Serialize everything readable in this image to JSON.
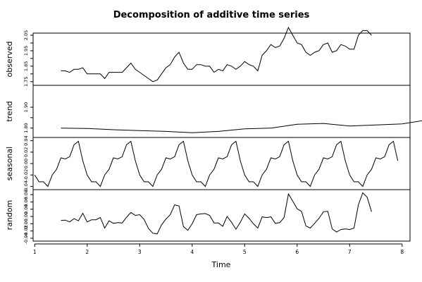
{
  "chart_data": {
    "type": "line",
    "title": "Decomposition of additive time series",
    "xlabel": "Time",
    "x_ticks": [
      1,
      2,
      3,
      4,
      5,
      6,
      7,
      8
    ],
    "xlim": [
      0.97,
      8.15
    ],
    "grid": false,
    "legend": "none",
    "panels": [
      {
        "name": "observed",
        "ylabel": "observed",
        "ylim": [
          1.74,
          2.05
        ],
        "y_ticks": [
          1.75,
          1.8,
          1.85,
          1.9,
          1.95,
          2.0,
          2.05
        ],
        "y_tick_labels": [
          "1.75",
          "",
          "1.85",
          "",
          "1.95",
          "",
          "2.05"
        ],
        "x_start": 1.5,
        "x_step": 0.0833333,
        "values": [
          1.82,
          1.82,
          1.81,
          1.83,
          1.83,
          1.84,
          1.8,
          1.8,
          1.8,
          1.8,
          1.77,
          1.81,
          1.81,
          1.81,
          1.81,
          1.84,
          1.87,
          1.83,
          1.81,
          1.79,
          1.77,
          1.75,
          1.76,
          1.8,
          1.84,
          1.86,
          1.91,
          1.94,
          1.87,
          1.83,
          1.83,
          1.86,
          1.86,
          1.85,
          1.85,
          1.81,
          1.83,
          1.82,
          1.86,
          1.85,
          1.83,
          1.85,
          1.88,
          1.86,
          1.85,
          1.82,
          1.92,
          1.95,
          1.99,
          1.97,
          1.98,
          2.03,
          2.1,
          2.05,
          2.0,
          1.99,
          1.94,
          1.92,
          1.94,
          1.95,
          1.99,
          2.0,
          1.94,
          1.95,
          1.99,
          1.98,
          1.96,
          1.96,
          2.05,
          2.08,
          2.08,
          2.05
        ]
      },
      {
        "name": "trend",
        "ylabel": "trend",
        "ylim": [
          1.765,
          1.995
        ],
        "y_ticks": [
          1.8,
          1.85,
          1.9
        ],
        "y_tick_labels": [
          "1.80",
          "",
          "1.90"
        ],
        "x_start": 1.5,
        "x_step": 0.5,
        "values": [
          1.8,
          1.798,
          1.792,
          1.788,
          1.784,
          1.778,
          1.784,
          1.796,
          1.8,
          1.818,
          1.822,
          1.81,
          1.815,
          1.82,
          1.84,
          1.876,
          1.91,
          1.924,
          1.922,
          1.9,
          1.904,
          1.93,
          1.94,
          1.968
        ]
      },
      {
        "name": "seasonal",
        "ylabel": "seasonal",
        "ylim": [
          -0.042,
          0.042
        ],
        "y_ticks": [
          -0.04,
          -0.02,
          0.0,
          0.02,
          0.04
        ],
        "y_tick_labels": [
          "-0.04",
          "-0.02",
          "0.00",
          "0.02",
          "0.04"
        ],
        "x_start": 1.0,
        "x_step": 0.0833333,
        "values": [
          -0.02,
          -0.032,
          -0.032,
          -0.04,
          -0.02,
          -0.01,
          0.01,
          0.008,
          0.012,
          0.033,
          0.039,
          0.005
        ]
      },
      {
        "name": "random",
        "ylabel": "random",
        "ylim": [
          -0.042,
          0.088
        ],
        "y_ticks": [
          -0.04,
          -0.02,
          0.0,
          0.02,
          0.04,
          0.06,
          0.08
        ],
        "y_tick_labels": [
          "-0.04",
          "-0.02",
          "0.00",
          "0.02",
          "0.04",
          "0.06",
          "0.08"
        ],
        "x_start": 1.5,
        "x_step": 0.0833333,
        "values": [
          0.009,
          0.01,
          0.005,
          0.014,
          0.008,
          0.029,
          0.005,
          0.011,
          0.011,
          0.017,
          -0.012,
          0.008,
          0.001,
          0.003,
          0.002,
          0.018,
          0.031,
          0.023,
          0.025,
          0.012,
          -0.013,
          -0.026,
          -0.028,
          -0.003,
          0.013,
          0.025,
          0.052,
          0.049,
          -0.008,
          -0.018,
          0.0,
          0.025,
          0.027,
          0.028,
          0.023,
          0.002,
          0.002,
          -0.007,
          0.02,
          0.004,
          -0.015,
          0.004,
          0.027,
          0.015,
          0.0,
          -0.012,
          0.019,
          0.017,
          0.019,
          0.001,
          0.003,
          0.017,
          0.082,
          0.062,
          0.041,
          0.034,
          -0.006,
          -0.012,
          0.001,
          0.015,
          0.033,
          0.034,
          -0.014,
          -0.023,
          -0.016,
          -0.014,
          -0.016,
          -0.012,
          0.052,
          0.085,
          0.073,
          0.033
        ]
      }
    ]
  }
}
